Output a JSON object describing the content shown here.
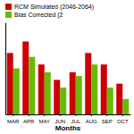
{
  "chart_data": {
    "type": "bar",
    "x_label": "Months",
    "categories": [
      "MAR",
      "APR",
      "MAY",
      "JUN",
      "JUL",
      "AUG",
      "SEP",
      "OCT"
    ],
    "series": [
      {
        "name": "RCM Simulated (2046-2064)",
        "color": "#cc0000",
        "values": [
          32,
          33.5,
          30.5,
          28.5,
          29.5,
          32,
          30.5,
          28
        ]
      },
      {
        "name": "Bias Corrected (2",
        "color": "#66bb00",
        "values": [
          30,
          31.5,
          29.5,
          27.5,
          29,
          30.5,
          27.5,
          26
        ]
      }
    ],
    "ylim": [
      24,
      36
    ],
    "grid": false,
    "legend": "top",
    "tick_labels": "x"
  }
}
